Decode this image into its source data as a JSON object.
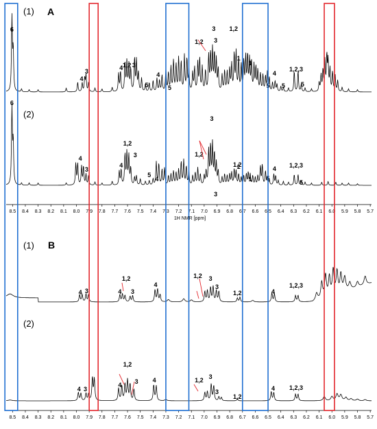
{
  "figure": {
    "panels": [
      {
        "letter": "A",
        "trace_labels": [
          "(1)",
          "(2)"
        ]
      },
      {
        "letter": "B",
        "trace_labels": [
          "(1)",
          "(2)"
        ]
      }
    ],
    "axis_title": "1H NMR [ppm]",
    "ticks": [
      "8.5",
      "8.4",
      "8.3",
      "8.2",
      "8.1",
      "8.0",
      "7.9",
      "7.8",
      "7.7",
      "7.6",
      "7.5",
      "7.4",
      "7.3",
      "7.2",
      "7.1",
      "7.0",
      "6.9",
      "6.8",
      "6.7",
      "6.6",
      "6.5",
      "6.4",
      "6.3",
      "6.2",
      "6.1",
      "6.0",
      "5.9",
      "5.8",
      "5.7"
    ]
  },
  "chart_data": {
    "type": "line",
    "xlabel": "1H NMR [ppm]",
    "xlim": [
      8.55,
      5.69
    ],
    "x_reversed": true,
    "highlight_boxes": [
      {
        "color": "#1f6fd1",
        "x_range": [
          8.56,
          8.46
        ]
      },
      {
        "color": "#e3282e",
        "x_range": [
          7.9,
          7.83
        ]
      },
      {
        "color": "#1f6fd1",
        "x_range": [
          7.3,
          7.12
        ]
      },
      {
        "color": "#1f6fd1",
        "x_range": [
          6.7,
          6.5
        ]
      },
      {
        "color": "#e3282e",
        "x_range": [
          6.06,
          5.98
        ]
      }
    ],
    "panels": [
      {
        "letter": "A",
        "traces": [
          {
            "label": "(1)",
            "annotations": [
              {
                "text": "6",
                "ppm": 8.505
              },
              {
                "text": "4",
                "ppm": 7.96
              },
              {
                "text": "3",
                "ppm": 7.92
              },
              {
                "text": "4",
                "ppm": 7.65
              },
              {
                "text": "1,2",
                "ppm": 7.605
              },
              {
                "text": "3",
                "ppm": 7.55
              },
              {
                "text": "5",
                "ppm": 7.45
              },
              {
                "text": "4",
                "ppm": 7.36
              },
              {
                "text": "5",
                "ppm": 7.27
              },
              {
                "text": "1,2",
                "ppm": 7.04
              },
              {
                "text": "3",
                "ppm": 6.925
              },
              {
                "text": "3",
                "ppm": 6.91
              },
              {
                "text": "1,2",
                "ppm": 6.77
              },
              {
                "text": "1",
                "ppm": 6.73
              },
              {
                "text": "1",
                "ppm": 6.64
              },
              {
                "text": "5",
                "ppm": 6.5
              },
              {
                "text": "4",
                "ppm": 6.45
              },
              {
                "text": "5",
                "ppm": 6.38
              },
              {
                "text": "1,2,3",
                "ppm": 6.28
              },
              {
                "text": "5",
                "ppm": 6.23
              }
            ]
          },
          {
            "label": "(2)",
            "annotations": [
              {
                "text": "6",
                "ppm": 8.505
              },
              {
                "text": "4",
                "ppm": 7.97
              },
              {
                "text": "3",
                "ppm": 7.92
              },
              {
                "text": "1,2",
                "ppm": 7.6
              },
              {
                "text": "4",
                "ppm": 7.65
              },
              {
                "text": "3",
                "ppm": 7.54
              },
              {
                "text": "4",
                "ppm": 7.37
              },
              {
                "text": "5",
                "ppm": 7.43
              },
              {
                "text": "1,2",
                "ppm": 7.04
              },
              {
                "text": "3",
                "ppm": 6.94
              },
              {
                "text": "3",
                "ppm": 6.91
              },
              {
                "text": "1,2",
                "ppm": 6.74
              },
              {
                "text": "1",
                "ppm": 6.73
              },
              {
                "text": "1",
                "ppm": 6.64
              },
              {
                "text": "5",
                "ppm": 6.5
              },
              {
                "text": "4",
                "ppm": 6.45
              },
              {
                "text": "1,2,3",
                "ppm": 6.28
              },
              {
                "text": "5",
                "ppm": 6.24
              }
            ]
          }
        ]
      },
      {
        "letter": "B",
        "traces": [
          {
            "label": "(1)",
            "annotations": [
              {
                "text": "4",
                "ppm": 7.97
              },
              {
                "text": "3",
                "ppm": 7.92
              },
              {
                "text": "4",
                "ppm": 7.66
              },
              {
                "text": "1,2",
                "ppm": 7.61
              },
              {
                "text": "3",
                "ppm": 7.56
              },
              {
                "text": "4",
                "ppm": 7.38
              },
              {
                "text": "1,2",
                "ppm": 7.05
              },
              {
                "text": "3",
                "ppm": 6.95
              },
              {
                "text": "3",
                "ppm": 6.9
              },
              {
                "text": "1,2",
                "ppm": 6.74
              },
              {
                "text": "4",
                "ppm": 6.46
              },
              {
                "text": "1,2,3",
                "ppm": 6.28
              }
            ]
          },
          {
            "label": "(2)",
            "annotations": [
              {
                "text": "4",
                "ppm": 7.98
              },
              {
                "text": "3",
                "ppm": 7.93
              },
              {
                "text": "4",
                "ppm": 7.66
              },
              {
                "text": "1,2",
                "ppm": 7.6
              },
              {
                "text": "3",
                "ppm": 7.53
              },
              {
                "text": "4",
                "ppm": 7.39
              },
              {
                "text": "1,2",
                "ppm": 7.04
              },
              {
                "text": "3",
                "ppm": 6.95
              },
              {
                "text": "3",
                "ppm": 6.9
              },
              {
                "text": "1,2",
                "ppm": 6.74
              },
              {
                "text": "4",
                "ppm": 6.46
              },
              {
                "text": "1,2,3",
                "ppm": 6.28
              }
            ]
          }
        ]
      }
    ]
  }
}
